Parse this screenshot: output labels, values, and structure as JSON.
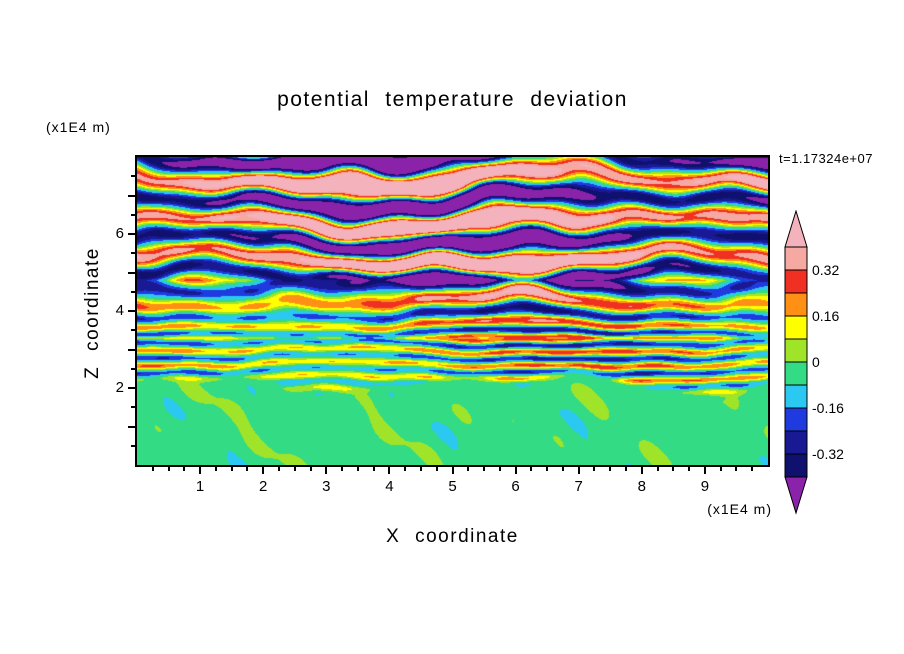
{
  "chart_data": {
    "type": "heatmap",
    "title": "potential temperature deviation",
    "time_label": "t=1.17324e+07",
    "xlabel": "X coordinate",
    "ylabel": "Z coordinate",
    "x_unit": "(x1E4 m)",
    "y_unit": "(x1E4 m)",
    "x_range": [
      0,
      10
    ],
    "z_range": [
      0,
      8
    ],
    "x_major_ticks": [
      1,
      2,
      3,
      4,
      5,
      6,
      7,
      8,
      9
    ],
    "x_minor_step": 0.25,
    "y_label_ticks": [
      2,
      4,
      6
    ],
    "y_major_step": 1,
    "y_minor_step": 0.5,
    "legend_position": "right",
    "grid": false,
    "levels": [
      -0.4,
      -0.32,
      -0.24,
      -0.16,
      -0.08,
      0,
      0.08,
      0.16,
      0.24,
      0.32,
      0.4
    ],
    "colors": {
      "below": "#8b22aa",
      "scale": [
        "#10106e",
        "#191993",
        "#1f3be0",
        "#2bc8f2",
        "#33db84",
        "#a0e42a",
        "#ffff00",
        "#ff9015",
        "#f03022",
        "#f5a9a2"
      ],
      "above": "#f4b3bc"
    },
    "colorbar_tick_labels": [
      "0.32",
      "0.16",
      "0",
      "-0.16",
      "-0.32"
    ],
    "field_model": {
      "interface": {
        "base": 1.95,
        "blend": 0.35,
        "waves": [
          [
            0.22,
            1.05,
            1.3
          ],
          [
            0.13,
            2.2,
            4.2
          ],
          [
            0.08,
            3.8,
            0.5
          ]
        ]
      },
      "amplitude_profile": [
        [
          0,
          0.05
        ],
        [
          1.7,
          0.06
        ],
        [
          2.2,
          0.24
        ],
        [
          3.4,
          0.26
        ],
        [
          4.3,
          0.34
        ],
        [
          5.1,
          0.62
        ],
        [
          8,
          0.66
        ]
      ],
      "wavelength_profile": [
        [
          0,
          0.36
        ],
        [
          3.3,
          0.36
        ],
        [
          4.8,
          0.72
        ],
        [
          8,
          0.82
        ]
      ],
      "amp_modulation": [
        0.82,
        0.28,
        0.75,
        0.5,
        1.2
      ],
      "phase_waves": [
        [
          1.1,
          0.8,
          0.7,
          0.4
        ],
        [
          0.65,
          1.7,
          -1.1,
          2.2
        ],
        [
          0.4,
          3.3,
          1.9,
          4.1
        ],
        [
          0.25,
          5.1,
          -2.6,
          0.9
        ]
      ],
      "ripple": [
        0.03,
        6.3,
        9.7
      ],
      "bottom": {
        "base": -0.035,
        "amp": 0.07,
        "norm": 3.2,
        "waves": [
          [
            1,
            3.1,
            2.4,
            0
          ],
          [
            1,
            5.3,
            3.7,
            1.7
          ],
          [
            0.7,
            8.9,
            1.9,
            3.3
          ],
          [
            0.5,
            2.1,
            5.6,
            2.0
          ]
        ]
      }
    }
  }
}
